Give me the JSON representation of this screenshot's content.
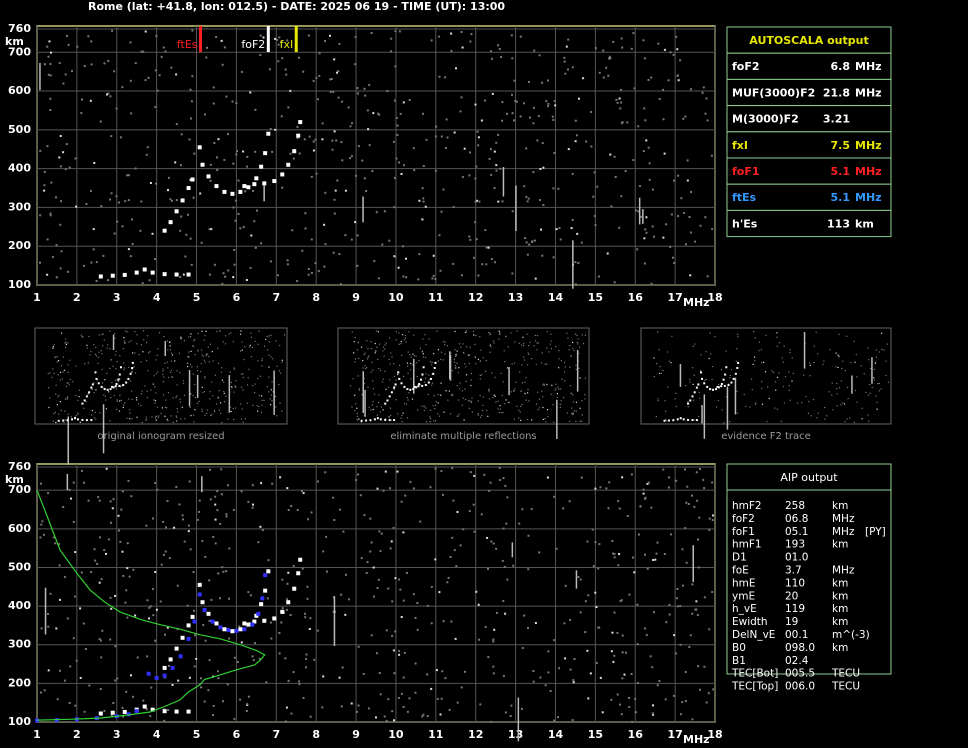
{
  "header": {
    "title": "Rome (lat: +41.8, lon: 012.5) - DATE: 2025 06 19 - TIME (UT): 13:00"
  },
  "chart_data": [
    {
      "type": "scatter",
      "xlabel": "MHz",
      "ylabel": "km",
      "xlim": [
        1,
        18
      ],
      "ylim": [
        100,
        760
      ],
      "xticks": [
        1,
        2,
        3,
        4,
        5,
        6,
        7,
        8,
        9,
        10,
        11,
        12,
        13,
        14,
        15,
        16,
        17,
        18
      ],
      "yticks": [
        100,
        200,
        300,
        400,
        500,
        600,
        700,
        760
      ],
      "grid": true,
      "series": [
        {
          "color": "#ffffff",
          "style": "points",
          "x": [
            2.6,
            2.9,
            3.2,
            3.5,
            3.7,
            3.9,
            4.2,
            4.5,
            4.8
          ],
          "values": [
            122,
            124,
            126,
            132,
            140,
            132,
            128,
            127,
            127
          ]
        },
        {
          "color": "#ffffff",
          "style": "points",
          "x": [
            4.2,
            4.35,
            4.5,
            4.65,
            4.8,
            4.9
          ],
          "values": [
            240,
            262,
            290,
            318,
            350,
            372
          ]
        },
        {
          "color": "#ffffff",
          "style": "points",
          "x": [
            5.08,
            5.15,
            5.3,
            5.5,
            5.7,
            5.9,
            6.1,
            6.3,
            6.5,
            6.62,
            6.72,
            6.8
          ],
          "values": [
            455,
            410,
            380,
            355,
            340,
            335,
            340,
            352,
            375,
            405,
            440,
            490
          ]
        },
        {
          "color": "#ffffff",
          "style": "points",
          "x": [
            6.2,
            6.45,
            6.7,
            6.95,
            7.15,
            7.3,
            7.45,
            7.55,
            7.6
          ],
          "values": [
            355,
            360,
            362,
            368,
            385,
            410,
            445,
            485,
            520
          ]
        }
      ],
      "markers": [
        {
          "label": "ftEs",
          "value": 5.1,
          "color": "#ff2020"
        },
        {
          "label": "foF2",
          "value": 6.8,
          "color": "#ffffff"
        },
        {
          "label": "fxI",
          "value": 7.5,
          "color": "#e8e800"
        }
      ]
    },
    {
      "type": "scatter",
      "xlabel": "MHz",
      "ylabel": "km",
      "xlim": [
        1,
        18
      ],
      "ylim": [
        100,
        760
      ],
      "xticks": [
        1,
        2,
        3,
        4,
        5,
        6,
        7,
        8,
        9,
        10,
        11,
        12,
        13,
        14,
        15,
        16,
        17,
        18
      ],
      "yticks": [
        100,
        200,
        300,
        400,
        500,
        600,
        700,
        760
      ],
      "grid": true,
      "series": [
        {
          "color": "#ffffff",
          "style": "points",
          "x": [
            2.6,
            2.9,
            3.2,
            3.5,
            3.7,
            3.9,
            4.2,
            4.5,
            4.8
          ],
          "values": [
            122,
            124,
            126,
            132,
            140,
            132,
            128,
            127,
            127
          ]
        },
        {
          "color": "#ffffff",
          "style": "points",
          "x": [
            4.2,
            4.35,
            4.5,
            4.65,
            4.8,
            4.9
          ],
          "values": [
            240,
            262,
            290,
            318,
            350,
            372
          ]
        },
        {
          "color": "#ffffff",
          "style": "points",
          "x": [
            5.08,
            5.15,
            5.3,
            5.5,
            5.7,
            5.9,
            6.1,
            6.3,
            6.5,
            6.62,
            6.72,
            6.8
          ],
          "values": [
            455,
            410,
            380,
            355,
            340,
            335,
            340,
            352,
            375,
            405,
            440,
            490
          ]
        },
        {
          "color": "#ffffff",
          "style": "points",
          "x": [
            6.2,
            6.45,
            6.7,
            6.95,
            7.15,
            7.3,
            7.45,
            7.55,
            7.6
          ],
          "values": [
            355,
            360,
            362,
            368,
            385,
            410,
            445,
            485,
            520
          ]
        },
        {
          "color": "#3030ff",
          "style": "points",
          "x": [
            1,
            1.5,
            2,
            2.5,
            3,
            3.3,
            3.5
          ],
          "values": [
            104,
            105,
            107,
            110,
            115,
            120,
            128
          ]
        },
        {
          "color": "#3030ff",
          "style": "points",
          "x": [
            3.8,
            4.0,
            4.2,
            4.4,
            4.6,
            4.8,
            4.95
          ],
          "values": [
            225,
            214,
            220,
            240,
            270,
            315,
            360
          ]
        },
        {
          "color": "#3030ff",
          "style": "points",
          "x": [
            5.08,
            5.2,
            5.4,
            5.6,
            5.8,
            6.0,
            6.2,
            6.4,
            6.55,
            6.65,
            6.72
          ],
          "values": [
            430,
            390,
            360,
            345,
            338,
            336,
            340,
            352,
            380,
            420,
            480
          ]
        },
        {
          "color": "#30d030",
          "style": "line",
          "x": [
            1,
            1.3,
            1.58,
            2.0,
            2.33,
            2.7,
            3.08,
            3.6,
            4.08,
            4.6,
            5.08,
            5.6,
            6.09,
            6.5,
            6.71,
            6.6,
            6.46,
            6.0,
            5.59,
            5.2,
            5.08,
            4.8,
            4.58,
            4.2,
            3.83,
            3.2,
            2.58,
            1.8,
            1
          ],
          "values": [
            700,
            620,
            545,
            485,
            442,
            410,
            385,
            365,
            352,
            340,
            326,
            315,
            300,
            285,
            274,
            260,
            248,
            235,
            222,
            210,
            196,
            178,
            157,
            140,
            126,
            117,
            110,
            107,
            105
          ]
        }
      ]
    }
  ],
  "thumbnails": [
    {
      "caption": "original ionogram resized"
    },
    {
      "caption": "eliminate multiple reflections"
    },
    {
      "caption": "evidence F2 trace"
    }
  ],
  "autoscala": {
    "title": "AUTOSCALA output",
    "rows": [
      {
        "name": "foF2",
        "value": "6.8",
        "unit": "MHz",
        "color": "#ffffff"
      },
      {
        "name": "MUF(3000)F2",
        "value": "21.8",
        "unit": "MHz",
        "color": "#ffffff"
      },
      {
        "name": "M(3000)F2",
        "value": "3.21",
        "unit": "",
        "color": "#ffffff"
      },
      {
        "name": "fxI",
        "value": "7.5",
        "unit": "MHz",
        "color": "#e8e800"
      },
      {
        "name": "foF1",
        "value": "5.1",
        "unit": "MHz",
        "color": "#ff2020"
      },
      {
        "name": "ftEs",
        "value": "5.1",
        "unit": "MHz",
        "color": "#3399ff"
      },
      {
        "name": "h'Es",
        "value": "113",
        "unit": "km",
        "color": "#ffffff"
      }
    ]
  },
  "aip": {
    "title": "AIP output",
    "rows": [
      [
        "hmF2",
        "258",
        "km"
      ],
      [
        "foF2",
        "06.8",
        "MHz"
      ],
      [
        "foF1",
        "05.1",
        "MHz",
        "[PY]"
      ],
      [
        "hmF1",
        "193",
        "km"
      ],
      [
        "D1",
        "01.0"
      ],
      [
        "foE",
        "3.7",
        "MHz"
      ],
      [
        "hmE",
        "110",
        "km"
      ],
      [
        "ymE",
        "20",
        "km"
      ],
      [
        "h_vE",
        "119",
        "km"
      ],
      [
        "Ewidth",
        "19",
        "km"
      ],
      [
        "DelN_vE",
        "00.1",
        "m^(-3)"
      ],
      [
        "B0",
        "098.0",
        "km"
      ],
      [
        "B1",
        "02.4"
      ],
      [
        "TEC[Bot]",
        "005.5",
        "TECU"
      ],
      [
        "TEC[Top]",
        "006.0",
        "TECU"
      ]
    ]
  }
}
